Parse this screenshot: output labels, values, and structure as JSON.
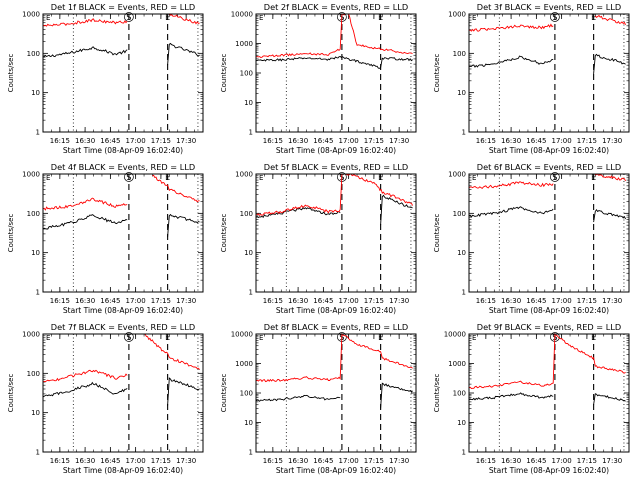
{
  "chart_data": [
    {
      "type": "line",
      "title": "Det 1f BLACK = Events, RED = LLD",
      "xlabel": "Start Time (08-Apr-09 16:02:40)",
      "ylabel": "Counts/sec",
      "yscale": "log",
      "ylim": [
        1,
        1000
      ],
      "xlim": [
        "16:05",
        "17:40"
      ],
      "x_ticks": [
        "16:15",
        "16:30",
        "16:45",
        "17:00",
        "17:15",
        "17:30"
      ],
      "y_ticks": [
        "1",
        "10",
        "100",
        "1000"
      ],
      "markers": [
        {
          "time": "16:23",
          "style": "dotted",
          "label": ""
        },
        {
          "time": "16:56",
          "style": "dashed",
          "label": "S"
        },
        {
          "time": "17:19",
          "style": "dashed",
          "label": "E"
        },
        {
          "time": "17:37",
          "style": "dotted",
          "label": ""
        }
      ],
      "series": [
        {
          "color": "#000000",
          "x": [
            "16:05",
            "16:20",
            "16:35",
            "16:48",
            "16:55",
            "16:56",
            "17:19",
            "17:20",
            "17:38"
          ],
          "y": [
            80,
            100,
            140,
            95,
            115,
            null,
            50,
            170,
            90
          ]
        },
        {
          "color": "#ff0000",
          "x": [
            "16:05",
            "16:20",
            "16:35",
            "16:48",
            "16:55",
            "16:56",
            "17:19",
            "17:20",
            "17:38"
          ],
          "y": [
            500,
            560,
            700,
            600,
            650,
            null,
            null,
            1000,
            550
          ]
        }
      ]
    },
    {
      "type": "line",
      "title": "Det 2f BLACK = Events, RED = LLD",
      "xlabel": "Start Time (08-Apr-09 16:02:40)",
      "ylabel": "Counts/sec",
      "yscale": "log",
      "ylim": [
        1,
        10000
      ],
      "xlim": [
        "16:05",
        "17:40"
      ],
      "x_ticks": [
        "16:15",
        "16:30",
        "16:45",
        "17:00",
        "17:15",
        "17:30"
      ],
      "y_ticks": [
        "1",
        "10",
        "100",
        "1000",
        "10000"
      ],
      "markers": [
        {
          "time": "16:23",
          "style": "dotted",
          "label": ""
        },
        {
          "time": "16:56",
          "style": "dashed",
          "label": "S"
        },
        {
          "time": "17:19",
          "style": "dashed",
          "label": "E"
        },
        {
          "time": "17:37",
          "style": "dotted",
          "label": ""
        }
      ],
      "series": [
        {
          "color": "#000000",
          "x": [
            "16:05",
            "16:20",
            "16:35",
            "16:48",
            "16:55",
            "17:00",
            "17:19",
            "17:20",
            "17:38"
          ],
          "y": [
            260,
            280,
            320,
            290,
            350,
            300,
            150,
            320,
            280
          ]
        },
        {
          "color": "#ff0000",
          "x": [
            "16:05",
            "16:20",
            "16:35",
            "16:48",
            "16:55",
            "16:56",
            "17:00",
            "17:05",
            "17:19",
            "17:38"
          ],
          "y": [
            350,
            400,
            450,
            420,
            650,
            10000,
            10000,
            900,
            650,
            450
          ]
        }
      ]
    },
    {
      "type": "line",
      "title": "Det 3f BLACK = Events, RED = LLD",
      "xlabel": "Start Time (08-Apr-09 16:02:40)",
      "ylabel": "Counts/sec",
      "yscale": "log",
      "ylim": [
        1,
        1000
      ],
      "xlim": [
        "16:05",
        "17:40"
      ],
      "x_ticks": [
        "16:15",
        "16:30",
        "16:45",
        "17:00",
        "17:15",
        "17:30"
      ],
      "y_ticks": [
        "1",
        "10",
        "100",
        "1000"
      ],
      "markers": [
        {
          "time": "16:23",
          "style": "dotted",
          "label": ""
        },
        {
          "time": "16:56",
          "style": "dashed",
          "label": "S"
        },
        {
          "time": "17:19",
          "style": "dashed",
          "label": "E"
        },
        {
          "time": "17:37",
          "style": "dotted",
          "label": ""
        }
      ],
      "series": [
        {
          "color": "#000000",
          "x": [
            "16:05",
            "16:20",
            "16:35",
            "16:48",
            "16:55",
            "16:56",
            "17:19",
            "17:20",
            "17:38"
          ],
          "y": [
            45,
            55,
            80,
            55,
            70,
            null,
            30,
            90,
            55
          ]
        },
        {
          "color": "#ff0000",
          "x": [
            "16:05",
            "16:20",
            "16:35",
            "16:48",
            "16:55",
            "16:56",
            "17:19",
            "17:20",
            "17:38"
          ],
          "y": [
            380,
            420,
            500,
            450,
            520,
            null,
            null,
            900,
            550
          ]
        }
      ]
    },
    {
      "type": "line",
      "title": "Det 4f BLACK = Events, RED = LLD",
      "xlabel": "Start Time (08-Apr-09 16:02:40)",
      "ylabel": "Counts/sec",
      "yscale": "log",
      "ylim": [
        1,
        1000
      ],
      "xlim": [
        "16:05",
        "17:40"
      ],
      "x_ticks": [
        "16:15",
        "16:30",
        "16:45",
        "17:00",
        "17:15",
        "17:30"
      ],
      "y_ticks": [
        "1",
        "10",
        "100",
        "1000"
      ],
      "markers": [
        {
          "time": "16:23",
          "style": "dotted",
          "label": ""
        },
        {
          "time": "16:56",
          "style": "dashed",
          "label": "S"
        },
        {
          "time": "17:19",
          "style": "dashed",
          "label": "E"
        },
        {
          "time": "17:37",
          "style": "dotted",
          "label": ""
        }
      ],
      "series": [
        {
          "color": "#000000",
          "x": [
            "16:05",
            "16:20",
            "16:35",
            "16:48",
            "16:55",
            "16:56",
            "17:19",
            "17:20",
            "17:38"
          ],
          "y": [
            40,
            55,
            90,
            55,
            70,
            null,
            25,
            90,
            60
          ]
        },
        {
          "color": "#ff0000",
          "x": [
            "16:05",
            "16:20",
            "16:35",
            "16:48",
            "16:55",
            "16:56",
            "17:10",
            "17:19",
            "17:20",
            "17:38"
          ],
          "y": [
            130,
            150,
            230,
            150,
            180,
            null,
            900,
            500,
            400,
            200
          ]
        }
      ]
    },
    {
      "type": "line",
      "title": "Det 5f BLACK = Events, RED = LLD",
      "xlabel": "Start Time (08-Apr-09 16:02:40)",
      "ylabel": "Counts/sec",
      "yscale": "log",
      "ylim": [
        1,
        1000
      ],
      "xlim": [
        "16:05",
        "17:40"
      ],
      "x_ticks": [
        "16:15",
        "16:30",
        "16:45",
        "17:00",
        "17:15",
        "17:30"
      ],
      "y_ticks": [
        "1",
        "10",
        "100",
        "1000"
      ],
      "markers": [
        {
          "time": "16:23",
          "style": "dotted",
          "label": ""
        },
        {
          "time": "16:56",
          "style": "dashed",
          "label": "S"
        },
        {
          "time": "17:19",
          "style": "dashed",
          "label": "E"
        },
        {
          "time": "17:37",
          "style": "dotted",
          "label": ""
        }
      ],
      "series": [
        {
          "color": "#000000",
          "x": [
            "16:05",
            "16:20",
            "16:35",
            "16:48",
            "16:55",
            "16:56",
            "17:19",
            "17:20",
            "17:38"
          ],
          "y": [
            80,
            100,
            140,
            95,
            110,
            null,
            50,
            280,
            130
          ]
        },
        {
          "color": "#ff0000",
          "x": [
            "16:05",
            "16:20",
            "16:35",
            "16:48",
            "16:55",
            "16:56",
            "17:00",
            "17:15",
            "17:20",
            "17:38"
          ],
          "y": [
            90,
            110,
            160,
            110,
            120,
            1000,
            1000,
            600,
            350,
            170
          ]
        }
      ]
    },
    {
      "type": "line",
      "title": "Det 6f BLACK = Events, RED = LLD",
      "xlabel": "Start Time (08-Apr-09 16:02:40)",
      "ylabel": "Counts/sec",
      "yscale": "log",
      "ylim": [
        1,
        1000
      ],
      "xlim": [
        "16:05",
        "17:40"
      ],
      "x_ticks": [
        "16:15",
        "16:30",
        "16:45",
        "17:00",
        "17:15",
        "17:30"
      ],
      "y_ticks": [
        "1",
        "10",
        "100",
        "1000"
      ],
      "markers": [
        {
          "time": "16:23",
          "style": "dotted",
          "label": ""
        },
        {
          "time": "16:56",
          "style": "dashed",
          "label": "S"
        },
        {
          "time": "17:19",
          "style": "dashed",
          "label": "E"
        },
        {
          "time": "17:37",
          "style": "dotted",
          "label": ""
        }
      ],
      "series": [
        {
          "color": "#000000",
          "x": [
            "16:05",
            "16:20",
            "16:35",
            "16:48",
            "16:55",
            "16:56",
            "17:19",
            "17:20",
            "17:38"
          ],
          "y": [
            85,
            100,
            140,
            100,
            120,
            null,
            60,
            120,
            75
          ]
        },
        {
          "color": "#ff0000",
          "x": [
            "16:05",
            "16:20",
            "16:35",
            "16:48",
            "16:55",
            "16:56",
            "17:19",
            "17:38"
          ],
          "y": [
            450,
            480,
            600,
            520,
            560,
            null,
            1000,
            700
          ]
        }
      ]
    },
    {
      "type": "line",
      "title": "Det 7f BLACK = Events, RED = LLD",
      "xlabel": "Start Time (08-Apr-09 16:02:40)",
      "ylabel": "Counts/sec",
      "yscale": "log",
      "ylim": [
        1,
        1000
      ],
      "xlim": [
        "16:05",
        "17:40"
      ],
      "x_ticks": [
        "16:15",
        "16:30",
        "16:45",
        "17:00",
        "17:15",
        "17:30"
      ],
      "y_ticks": [
        "1",
        "10",
        "100",
        "1000"
      ],
      "markers": [
        {
          "time": "16:23",
          "style": "dotted",
          "label": ""
        },
        {
          "time": "16:56",
          "style": "dashed",
          "label": "S"
        },
        {
          "time": "17:19",
          "style": "dashed",
          "label": "E"
        },
        {
          "time": "17:37",
          "style": "dotted",
          "label": ""
        }
      ],
      "series": [
        {
          "color": "#000000",
          "x": [
            "16:05",
            "16:20",
            "16:35",
            "16:48",
            "16:55",
            "16:56",
            "17:19",
            "17:20",
            "17:38"
          ],
          "y": [
            25,
            35,
            55,
            30,
            40,
            null,
            15,
            70,
            40
          ]
        },
        {
          "color": "#ff0000",
          "x": [
            "16:05",
            "16:20",
            "16:35",
            "16:48",
            "16:55",
            "16:56",
            "17:05",
            "17:19",
            "17:20",
            "17:38"
          ],
          "y": [
            60,
            80,
            120,
            75,
            90,
            null,
            1000,
            300,
            250,
            130
          ]
        }
      ]
    },
    {
      "type": "line",
      "title": "Det 8f BLACK = Events, RED = LLD",
      "xlabel": "Start Time (08-Apr-09 16:02:40)",
      "ylabel": "Counts/sec",
      "yscale": "log",
      "ylim": [
        1,
        10000
      ],
      "xlim": [
        "16:05",
        "17:40"
      ],
      "x_ticks": [
        "16:15",
        "16:30",
        "16:45",
        "17:00",
        "17:15",
        "17:30"
      ],
      "y_ticks": [
        "1",
        "10",
        "100",
        "1000",
        "10000"
      ],
      "markers": [
        {
          "time": "16:23",
          "style": "dotted",
          "label": ""
        },
        {
          "time": "16:56",
          "style": "dashed",
          "label": "S"
        },
        {
          "time": "17:19",
          "style": "dashed",
          "label": "E"
        },
        {
          "time": "17:37",
          "style": "dotted",
          "label": ""
        }
      ],
      "series": [
        {
          "color": "#000000",
          "x": [
            "16:05",
            "16:20",
            "16:35",
            "16:48",
            "16:55",
            "16:56",
            "17:19",
            "17:20",
            "17:38"
          ],
          "y": [
            55,
            60,
            80,
            60,
            70,
            null,
            30,
            200,
            110
          ]
        },
        {
          "color": "#ff0000",
          "x": [
            "16:05",
            "16:20",
            "16:35",
            "16:48",
            "16:55",
            "16:56",
            "17:05",
            "17:19",
            "17:20",
            "17:38"
          ],
          "y": [
            260,
            270,
            330,
            280,
            320,
            10000,
            4500,
            2500,
            1500,
            700
          ]
        }
      ]
    },
    {
      "type": "line",
      "title": "Det 9f BLACK = Events, RED = LLD",
      "xlabel": "Start Time (08-Apr-09 16:02:40)",
      "ylabel": "Counts/sec",
      "yscale": "log",
      "ylim": [
        1,
        10000
      ],
      "xlim": [
        "16:05",
        "17:40"
      ],
      "x_ticks": [
        "16:15",
        "16:30",
        "16:45",
        "17:00",
        "17:15",
        "17:30"
      ],
      "y_ticks": [
        "1",
        "10",
        "100",
        "1000",
        "10000"
      ],
      "markers": [
        {
          "time": "16:23",
          "style": "dotted",
          "label": ""
        },
        {
          "time": "16:56",
          "style": "dashed",
          "label": "S"
        },
        {
          "time": "17:19",
          "style": "dashed",
          "label": "E"
        },
        {
          "time": "17:37",
          "style": "dotted",
          "label": ""
        }
      ],
      "series": [
        {
          "color": "#000000",
          "x": [
            "16:05",
            "16:20",
            "16:35",
            "16:48",
            "16:55",
            "16:56",
            "17:19",
            "17:20",
            "17:38"
          ],
          "y": [
            60,
            70,
            95,
            70,
            80,
            null,
            40,
            90,
            55
          ]
        },
        {
          "color": "#ff0000",
          "x": [
            "16:05",
            "16:20",
            "16:35",
            "16:48",
            "16:55",
            "16:56",
            "17:05",
            "17:19",
            "17:20",
            "17:38"
          ],
          "y": [
            150,
            170,
            240,
            180,
            200,
            10000,
            4000,
            1500,
            800,
            500
          ]
        }
      ]
    }
  ]
}
